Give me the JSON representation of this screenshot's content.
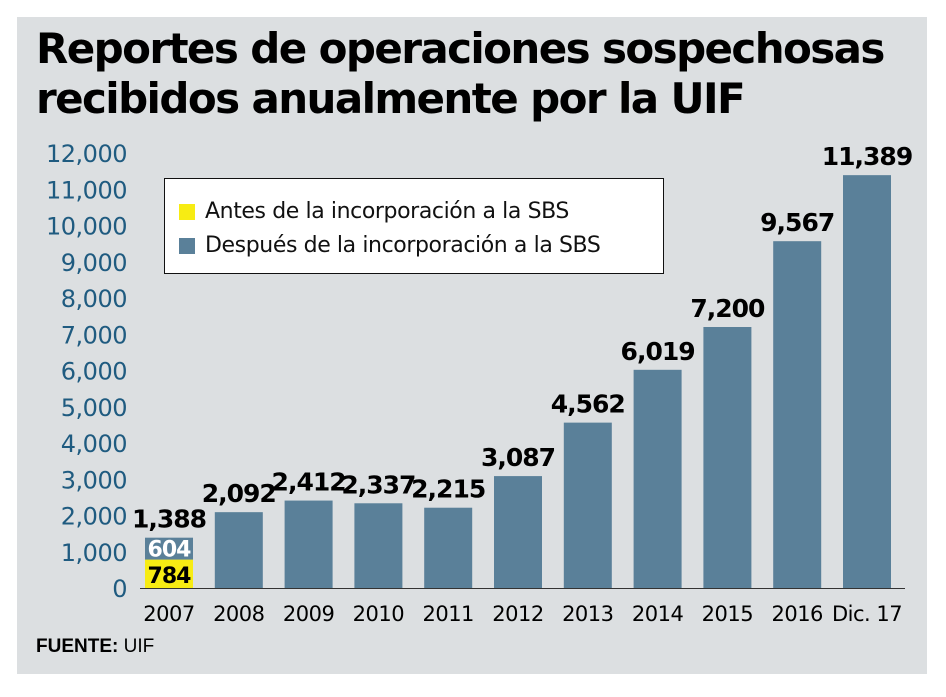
{
  "title_line1": "Reportes de operaciones sospechosas",
  "title_line2": "recibidos anualmente por la UIF",
  "colors": {
    "before": "#f7ec13",
    "after": "#5a8099",
    "axis_text": "#1f5b80",
    "panel": "#dcdfe1"
  },
  "legend": {
    "before": "Antes de la incorporación a la SBS",
    "after": "Después de la incorporación a la SBS"
  },
  "source": {
    "label": "FUENTE:",
    "text": "UIF"
  },
  "chart_data": {
    "type": "bar",
    "stacked": true,
    "categories": [
      "2007",
      "2008",
      "2009",
      "2010",
      "2011",
      "2012",
      "2013",
      "2014",
      "2015",
      "2016",
      "Dic. 17"
    ],
    "series": [
      {
        "name": "Antes de la incorporación a la SBS",
        "values": [
          784,
          0,
          0,
          0,
          0,
          0,
          0,
          0,
          0,
          0,
          0
        ]
      },
      {
        "name": "Después de la incorporación a la SBS",
        "values": [
          604,
          2092,
          2412,
          2337,
          2215,
          3087,
          4562,
          6019,
          7200,
          9567,
          11389
        ]
      }
    ],
    "totals": [
      1388,
      2092,
      2412,
      2337,
      2215,
      3087,
      4562,
      6019,
      7200,
      9567,
      11389
    ],
    "total_labels": [
      "1,388",
      "2,092",
      "2,412",
      "2,337",
      "2,215",
      "3,087",
      "4,562",
      "6,019",
      "7,200",
      "9,567",
      "11,389"
    ],
    "segment_labels": {
      "before_2007": "784",
      "after_2007": "604"
    },
    "yticks": [
      0,
      1000,
      2000,
      3000,
      4000,
      5000,
      6000,
      7000,
      8000,
      9000,
      10000,
      11000,
      12000
    ],
    "ytick_labels": [
      "0",
      "1,000",
      "2,000",
      "3,000",
      "4,000",
      "5,000",
      "6,000",
      "7,000",
      "8,000",
      "9,000",
      "10,000",
      "11,000",
      "12,000"
    ],
    "ylim": [
      0,
      12000
    ],
    "grid": false,
    "legend_position": "top-left"
  }
}
